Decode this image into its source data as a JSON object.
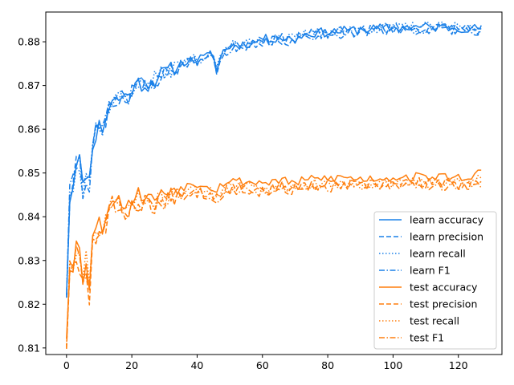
{
  "chart_data": {
    "type": "line",
    "title": "",
    "xlabel": "",
    "ylabel": "",
    "xlim": [
      -6.35,
      133.35
    ],
    "ylim": [
      0.8085,
      0.8868
    ],
    "xticks": [
      0,
      20,
      40,
      60,
      80,
      100,
      120
    ],
    "yticks": [
      0.81,
      0.82,
      0.83,
      0.84,
      0.85,
      0.86,
      0.87,
      0.88
    ],
    "grid": false,
    "legend_position": "lower-right",
    "colors": {
      "learn": "#1a80e8",
      "test": "#ff7f0e"
    },
    "anchors": {
      "learn": [
        [
          0,
          0.8235
        ],
        [
          1,
          0.8445
        ],
        [
          2,
          0.8475
        ],
        [
          3,
          0.854
        ],
        [
          4,
          0.853
        ],
        [
          5,
          0.846
        ],
        [
          6,
          0.851
        ],
        [
          7,
          0.848
        ],
        [
          8,
          0.8575
        ],
        [
          9,
          0.859
        ],
        [
          10,
          0.861
        ],
        [
          11,
          0.86
        ],
        [
          12,
          0.8625
        ],
        [
          13,
          0.865
        ],
        [
          14,
          0.8665
        ],
        [
          16,
          0.867
        ],
        [
          18,
          0.8675
        ],
        [
          20,
          0.869
        ],
        [
          22,
          0.8705
        ],
        [
          25,
          0.87
        ],
        [
          28,
          0.872
        ],
        [
          30,
          0.873
        ],
        [
          33,
          0.874
        ],
        [
          36,
          0.8755
        ],
        [
          40,
          0.876
        ],
        [
          43,
          0.8765
        ],
        [
          45,
          0.8775
        ],
        [
          46,
          0.8735
        ],
        [
          48,
          0.878
        ],
        [
          50,
          0.879
        ],
        [
          55,
          0.8795
        ],
        [
          60,
          0.8805
        ],
        [
          65,
          0.881
        ],
        [
          70,
          0.8805
        ],
        [
          72,
          0.8815
        ],
        [
          75,
          0.882
        ],
        [
          80,
          0.8822
        ],
        [
          85,
          0.8825
        ],
        [
          90,
          0.8828
        ],
        [
          95,
          0.883
        ],
        [
          100,
          0.8832
        ],
        [
          105,
          0.8833
        ],
        [
          110,
          0.8834
        ],
        [
          115,
          0.8832
        ],
        [
          120,
          0.8833
        ],
        [
          125,
          0.883
        ],
        [
          127,
          0.8832
        ]
      ],
      "test": [
        [
          0,
          0.8125
        ],
        [
          1,
          0.829
        ],
        [
          2,
          0.8285
        ],
        [
          3,
          0.833
        ],
        [
          4,
          0.831
        ],
        [
          5,
          0.825
        ],
        [
          6,
          0.83
        ],
        [
          7,
          0.824
        ],
        [
          8,
          0.835
        ],
        [
          9,
          0.836
        ],
        [
          10,
          0.838
        ],
        [
          11,
          0.837
        ],
        [
          12,
          0.839
        ],
        [
          13,
          0.842
        ],
        [
          14,
          0.844
        ],
        [
          16,
          0.843
        ],
        [
          18,
          0.842
        ],
        [
          20,
          0.843
        ],
        [
          22,
          0.8445
        ],
        [
          24,
          0.844
        ],
        [
          26,
          0.8435
        ],
        [
          28,
          0.844
        ],
        [
          30,
          0.8445
        ],
        [
          32,
          0.8455
        ],
        [
          35,
          0.846
        ],
        [
          38,
          0.8465
        ],
        [
          40,
          0.8468
        ],
        [
          43,
          0.8465
        ],
        [
          46,
          0.8455
        ],
        [
          48,
          0.847
        ],
        [
          50,
          0.8475
        ],
        [
          55,
          0.8472
        ],
        [
          60,
          0.847
        ],
        [
          65,
          0.8475
        ],
        [
          70,
          0.847
        ],
        [
          75,
          0.8478
        ],
        [
          80,
          0.848
        ],
        [
          85,
          0.8482
        ],
        [
          90,
          0.8478
        ],
        [
          95,
          0.848
        ],
        [
          100,
          0.8482
        ],
        [
          105,
          0.8483
        ],
        [
          110,
          0.8484
        ],
        [
          115,
          0.8483
        ],
        [
          120,
          0.8482
        ],
        [
          125,
          0.8485
        ],
        [
          126,
          0.8495
        ],
        [
          127,
          0.849
        ]
      ]
    },
    "series": [
      {
        "name": "learn accuracy",
        "group": "learn",
        "dash": "solid",
        "offset": 0.0,
        "noise": 0.0011,
        "seed": 11
      },
      {
        "name": "learn precision",
        "group": "learn",
        "dash": "dashed",
        "offset": -0.0003,
        "noise": 0.0013,
        "seed": 23
      },
      {
        "name": "learn recall",
        "group": "learn",
        "dash": "dotted",
        "offset": 0.0001,
        "noise": 0.0012,
        "seed": 37
      },
      {
        "name": "learn F1",
        "group": "learn",
        "dash": "dashdot",
        "offset": -0.0004,
        "noise": 0.0013,
        "seed": 41
      },
      {
        "name": "test accuracy",
        "group": "test",
        "dash": "solid",
        "offset": 0.0008,
        "noise": 0.001,
        "seed": 53
      },
      {
        "name": "test precision",
        "group": "test",
        "dash": "dashed",
        "offset": -0.0008,
        "noise": 0.0014,
        "seed": 67
      },
      {
        "name": "test recall",
        "group": "test",
        "dash": "dotted",
        "offset": -0.0004,
        "noise": 0.0012,
        "seed": 71
      },
      {
        "name": "test F1",
        "group": "test",
        "dash": "dashdot",
        "offset": -0.0012,
        "noise": 0.0013,
        "seed": 83
      }
    ]
  }
}
